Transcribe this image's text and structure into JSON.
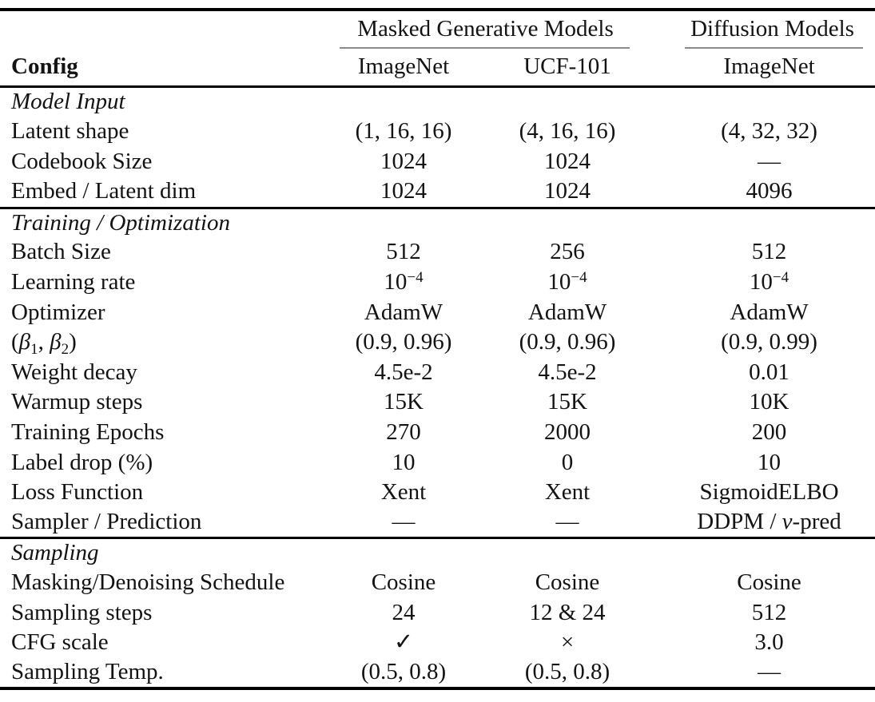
{
  "header": {
    "config_label": "Config",
    "groups": [
      {
        "label": "Masked Generative Models",
        "columns": [
          "ImageNet",
          "UCF-101"
        ]
      },
      {
        "label": "Diffusion Models",
        "columns": [
          "ImageNet"
        ]
      }
    ]
  },
  "sections": [
    {
      "title": "Model Input",
      "rows": [
        {
          "label": "Latent shape",
          "values": [
            "(1, 16, 16)",
            "(4, 16, 16)",
            "(4, 32, 32)"
          ]
        },
        {
          "label": "Codebook Size",
          "values": [
            "1024",
            "1024",
            "—"
          ]
        },
        {
          "label": "Embed / Latent dim",
          "values": [
            "1024",
            "1024",
            "4096"
          ]
        }
      ]
    },
    {
      "title": "Training / Optimization",
      "rows": [
        {
          "label": "Batch Size",
          "values": [
            "512",
            "256",
            "512"
          ]
        },
        {
          "label": "Learning rate",
          "base": "10",
          "exponent": "−4"
        },
        {
          "label": "Optimizer",
          "values": [
            "AdamW",
            "AdamW",
            "AdamW"
          ]
        },
        {
          "label_parts": {
            "open": "(",
            "beta1": "β",
            "sub1": "1",
            "separator": ", ",
            "beta2": "β",
            "sub2": "2",
            "close": ")"
          },
          "values": [
            "(0.9, 0.96)",
            "(0.9, 0.96)",
            "(0.9, 0.99)"
          ]
        },
        {
          "label": "Weight decay",
          "values": [
            "4.5e-2",
            "4.5e-2",
            "0.01"
          ]
        },
        {
          "label": "Warmup steps",
          "values": [
            "15K",
            "15K",
            "10K"
          ]
        },
        {
          "label": "Training Epochs",
          "values": [
            "270",
            "2000",
            "200"
          ]
        },
        {
          "label": "Label drop (%)",
          "values": [
            "10",
            "0",
            "10"
          ]
        },
        {
          "label": "Loss Function",
          "values": [
            "Xent",
            "Xent",
            "SigmoidELBO"
          ]
        },
        {
          "label": "Sampler / Prediction",
          "values": [
            "—",
            "—"
          ],
          "value_parts": {
            "pre": "DDPM / ",
            "italic_v": "v",
            "post": "-pred"
          }
        }
      ]
    },
    {
      "title": "Sampling",
      "rows": [
        {
          "label": "Masking/Denoising Schedule",
          "values": [
            "Cosine",
            "Cosine",
            "Cosine"
          ]
        },
        {
          "label": "Sampling steps",
          "values": [
            "24",
            "12 & 24",
            "512"
          ]
        },
        {
          "label": "CFG scale",
          "values": [
            "✓",
            "×",
            "3.0"
          ]
        },
        {
          "label": "Sampling Temp.",
          "values": [
            "(0.5, 0.8)",
            "(0.5, 0.8)",
            "—"
          ]
        }
      ]
    }
  ]
}
